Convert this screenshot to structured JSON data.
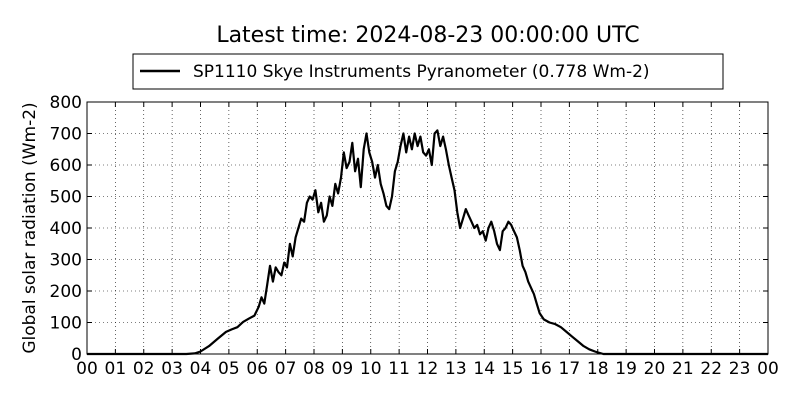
{
  "chart_data": {
    "type": "line",
    "title": "Latest time: 2024-08-23 00:00:00 UTC",
    "xlabel": "",
    "ylabel": "Global solar radiation (Wm-2)",
    "xlim": [
      0,
      24
    ],
    "ylim": [
      0,
      800
    ],
    "grid": true,
    "legend_placement": "top-center, above plot",
    "x_tick_labels": [
      "00",
      "01",
      "02",
      "03",
      "04",
      "05",
      "06",
      "07",
      "08",
      "09",
      "10",
      "11",
      "12",
      "13",
      "14",
      "15",
      "16",
      "17",
      "18",
      "19",
      "20",
      "21",
      "22",
      "23",
      "00"
    ],
    "y_ticks": [
      0,
      100,
      200,
      300,
      400,
      500,
      600,
      700,
      800
    ],
    "series": [
      {
        "name": "SP1110 Skye Instruments Pyranometer (0.778 Wm-2)",
        "color": "#000000",
        "x": [
          0,
          3.5,
          3.8,
          4.0,
          4.3,
          4.6,
          4.9,
          5.1,
          5.3,
          5.5,
          5.7,
          5.9,
          6.05,
          6.15,
          6.25,
          6.35,
          6.45,
          6.55,
          6.65,
          6.75,
          6.85,
          6.95,
          7.05,
          7.15,
          7.25,
          7.35,
          7.45,
          7.55,
          7.65,
          7.75,
          7.85,
          7.95,
          8.05,
          8.15,
          8.25,
          8.35,
          8.45,
          8.55,
          8.65,
          8.75,
          8.85,
          8.95,
          9.05,
          9.15,
          9.25,
          9.35,
          9.45,
          9.55,
          9.65,
          9.75,
          9.85,
          9.95,
          10.05,
          10.15,
          10.25,
          10.35,
          10.45,
          10.55,
          10.65,
          10.75,
          10.85,
          10.95,
          11.05,
          11.15,
          11.25,
          11.35,
          11.45,
          11.55,
          11.65,
          11.75,
          11.85,
          11.95,
          12.05,
          12.15,
          12.25,
          12.35,
          12.45,
          12.55,
          12.65,
          12.75,
          12.85,
          12.95,
          13.05,
          13.15,
          13.25,
          13.35,
          13.45,
          13.55,
          13.65,
          13.75,
          13.85,
          13.95,
          14.05,
          14.15,
          14.25,
          14.35,
          14.45,
          14.55,
          14.65,
          14.75,
          14.85,
          14.95,
          15.05,
          15.15,
          15.25,
          15.35,
          15.45,
          15.55,
          15.65,
          15.75,
          15.85,
          15.95,
          16.1,
          16.3,
          16.5,
          16.7,
          16.9,
          17.1,
          17.3,
          17.5,
          17.7,
          17.9,
          18.0,
          18.2,
          24
        ],
        "y": [
          0,
          0,
          2,
          8,
          25,
          48,
          70,
          78,
          85,
          102,
          112,
          122,
          150,
          180,
          160,
          220,
          280,
          230,
          275,
          260,
          250,
          290,
          275,
          350,
          310,
          370,
          400,
          430,
          420,
          480,
          500,
          490,
          520,
          450,
          480,
          420,
          440,
          500,
          470,
          540,
          510,
          560,
          640,
          590,
          610,
          670,
          580,
          620,
          530,
          650,
          700,
          640,
          610,
          560,
          600,
          540,
          510,
          470,
          460,
          500,
          580,
          610,
          660,
          700,
          640,
          690,
          650,
          700,
          660,
          690,
          640,
          630,
          650,
          600,
          700,
          710,
          660,
          690,
          650,
          600,
          560,
          520,
          450,
          400,
          430,
          460,
          440,
          420,
          400,
          410,
          380,
          390,
          360,
          400,
          420,
          390,
          350,
          330,
          390,
          400,
          420,
          410,
          390,
          370,
          330,
          280,
          260,
          230,
          210,
          190,
          160,
          130,
          110,
          100,
          95,
          85,
          70,
          55,
          40,
          25,
          15,
          8,
          5,
          0,
          0
        ]
      }
    ]
  }
}
